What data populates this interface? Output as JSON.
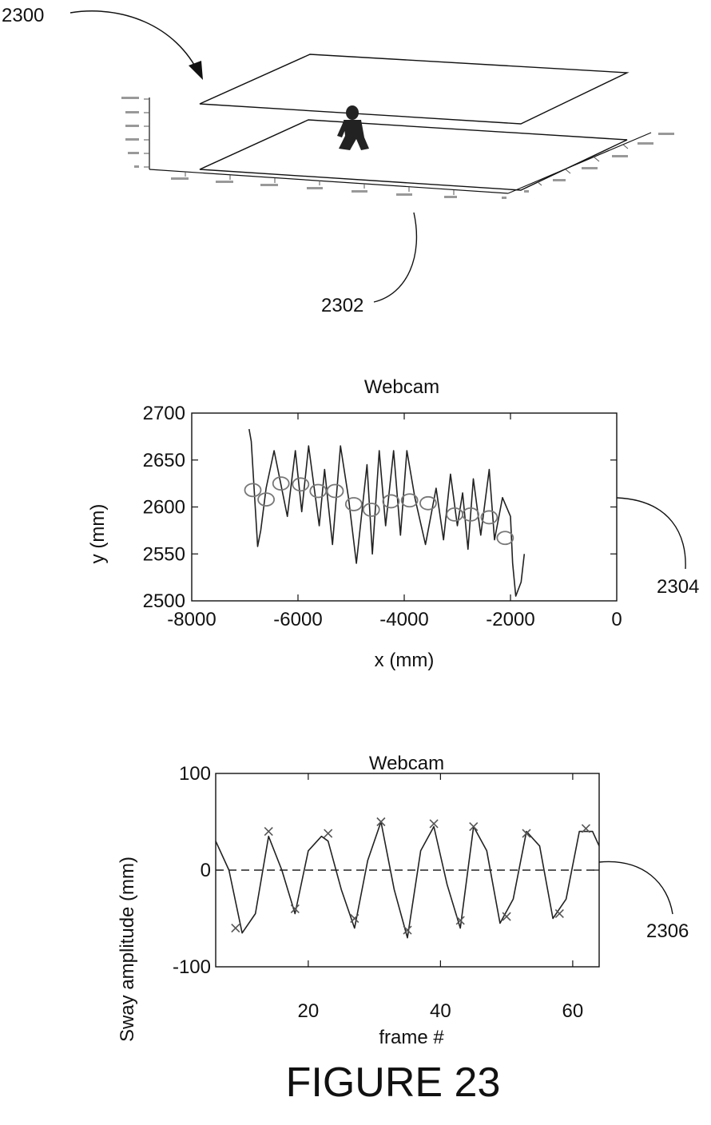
{
  "figure": {
    "caption": "FIGURE 23",
    "refs": {
      "r2300": "2300",
      "r2302": "2302",
      "r2304": "2304",
      "r2306": "2306"
    }
  },
  "chart_data": [
    {
      "type": "line",
      "title": "Webcam",
      "xlabel": "x (mm)",
      "ylabel": "y (mm)",
      "xlim": [
        -8000,
        0
      ],
      "ylim": [
        2500,
        2700
      ],
      "xticks": [
        -8000,
        -6000,
        -4000,
        -2000,
        0
      ],
      "yticks": [
        2500,
        2550,
        2600,
        2650,
        2700
      ],
      "xtick_labels": [
        "-8000",
        "-6000",
        "-4000",
        "-2000",
        "0"
      ],
      "ytick_labels": [
        "2500",
        "2550",
        "2600",
        "2650",
        "2700"
      ],
      "series": [
        {
          "style": "line",
          "x": [
            -6920,
            -6880,
            -6760,
            -6700,
            -6600,
            -6450,
            -6200,
            -6050,
            -5930,
            -5800,
            -5600,
            -5500,
            -5350,
            -5200,
            -5050,
            -4900,
            -4700,
            -4600,
            -4470,
            -4350,
            -4200,
            -4070,
            -3950,
            -3800,
            -3600,
            -3400,
            -3260,
            -3130,
            -3000,
            -2900,
            -2800,
            -2700,
            -2560,
            -2400,
            -2300,
            -2150,
            -2000,
            -1960,
            -1900,
            -1800,
            -1740
          ],
          "y": [
            2683,
            2670,
            2558,
            2575,
            2620,
            2660,
            2590,
            2660,
            2595,
            2665,
            2580,
            2640,
            2560,
            2665,
            2610,
            2540,
            2645,
            2550,
            2660,
            2580,
            2660,
            2570,
            2660,
            2610,
            2560,
            2620,
            2565,
            2635,
            2580,
            2615,
            2555,
            2630,
            2570,
            2640,
            2565,
            2610,
            2590,
            2540,
            2505,
            2520,
            2550
          ]
        },
        {
          "style": "circle-markers",
          "x": [
            -6850,
            -6600,
            -6320,
            -5950,
            -5620,
            -5300,
            -4950,
            -4620,
            -4250,
            -3900,
            -3550,
            -3050,
            -2750,
            -2400,
            -2100
          ],
          "y": [
            2618,
            2608,
            2625,
            2624,
            2617,
            2617,
            2603,
            2597,
            2606,
            2607,
            2604,
            2592,
            2592,
            2589,
            2567
          ]
        }
      ],
      "annotations": [
        "2304"
      ]
    },
    {
      "type": "line",
      "title": "Webcam",
      "xlabel": "frame #",
      "ylabel": "Sway amplitude (mm)",
      "xlim": [
        6,
        64
      ],
      "ylim": [
        -100,
        100
      ],
      "xticks": [
        20,
        40,
        60
      ],
      "yticks": [
        -100,
        0,
        100
      ],
      "xtick_labels": [
        "20",
        "40",
        "60"
      ],
      "ytick_labels": [
        "-100",
        "0",
        "100"
      ],
      "series": [
        {
          "style": "line",
          "x": [
            6,
            8,
            10,
            12,
            14,
            16,
            18,
            20,
            22,
            23,
            25,
            27,
            29,
            31,
            33,
            35,
            37,
            39,
            41,
            43,
            45,
            47,
            49,
            51,
            53,
            55,
            57,
            59,
            61,
            63,
            64
          ],
          "y": [
            30,
            0,
            -65,
            -45,
            35,
            0,
            -45,
            20,
            35,
            30,
            -20,
            -60,
            10,
            50,
            -20,
            -70,
            20,
            45,
            -15,
            -60,
            45,
            20,
            -55,
            -30,
            40,
            25,
            -50,
            -30,
            40,
            40,
            25
          ]
        },
        {
          "style": "dashed",
          "x": [
            6,
            64
          ],
          "y": [
            0,
            0
          ]
        },
        {
          "style": "x-markers",
          "x": [
            9,
            14,
            18,
            23,
            27,
            31,
            35,
            39,
            43,
            45,
            50,
            53,
            58,
            62
          ],
          "y": [
            -60,
            40,
            -40,
            38,
            -50,
            50,
            -62,
            48,
            -52,
            45,
            -48,
            38,
            -45,
            43
          ]
        }
      ],
      "annotations": [
        "2306"
      ]
    }
  ]
}
